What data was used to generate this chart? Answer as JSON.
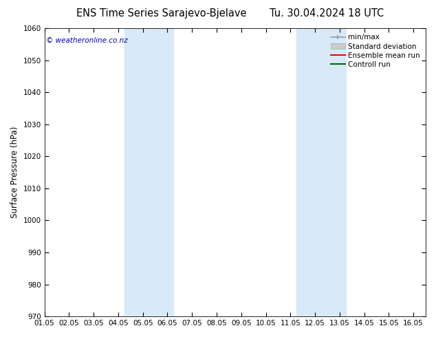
{
  "title_left": "ENS Time Series Sarajevo-Bjelave",
  "title_right": "Tu. 30.04.2024 18 UTC",
  "ylabel": "Surface Pressure (hPa)",
  "ylim": [
    970,
    1060
  ],
  "yticks": [
    970,
    980,
    990,
    1000,
    1010,
    1020,
    1030,
    1040,
    1050,
    1060
  ],
  "xlim_start": 0.0,
  "xlim_end": 15.5,
  "xtick_positions": [
    0,
    1,
    2,
    3,
    4,
    5,
    6,
    7,
    8,
    9,
    10,
    11,
    12,
    13,
    14,
    15
  ],
  "xtick_labels": [
    "01.05",
    "02.05",
    "03.05",
    "04.05",
    "05.05",
    "06.05",
    "07.05",
    "08.05",
    "09.05",
    "10.05",
    "11.05",
    "12.05",
    "13.05",
    "14.05",
    "15.05",
    "16.05"
  ],
  "shaded_regions": [
    {
      "x_start": 3.25,
      "x_end": 5.25,
      "color": "#d8eaf8"
    },
    {
      "x_start": 10.25,
      "x_end": 12.25,
      "color": "#d8eaf8"
    }
  ],
  "bg_color": "#ffffff",
  "plot_bg_color": "#ffffff",
  "watermark": "© weatheronline.co.nz",
  "watermark_color": "#0000bb",
  "legend_items": [
    {
      "label": "min/max",
      "color": "#999999",
      "style": "line_with_caps"
    },
    {
      "label": "Standard deviation",
      "color": "#cccccc",
      "style": "filled_box"
    },
    {
      "label": "Ensemble mean run",
      "color": "#ff0000",
      "style": "line"
    },
    {
      "label": "Controll run",
      "color": "#006600",
      "style": "line"
    }
  ],
  "title_fontsize": 10.5,
  "tick_fontsize": 7.5,
  "ylabel_fontsize": 8.5,
  "watermark_fontsize": 7.5,
  "legend_fontsize": 7.5
}
